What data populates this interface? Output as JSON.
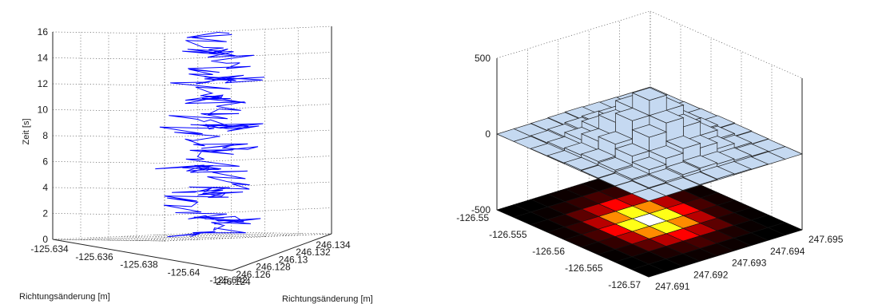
{
  "chart_data": [
    {
      "type": "line3d",
      "xlabel": "Richtungsänderung [m]",
      "ylabel": "Richtungsänderung [m]",
      "zlabel": "Zeit [s]",
      "x_ticks": [
        "-125.634",
        "-125.636",
        "-125.638",
        "-125.64",
        "-125.642"
      ],
      "y_ticks": [
        "246.124",
        "246.126",
        "246.128",
        "246.13",
        "246.132",
        "246.134"
      ],
      "z_ticks": [
        "0",
        "2",
        "4",
        "6",
        "8",
        "10",
        "12",
        "14",
        "16"
      ],
      "zlim": [
        0,
        16
      ],
      "grid": true,
      "line_color": "#0000ff",
      "path": [
        {
          "t": 0.0,
          "x": -125.6376,
          "y": 246.1286
        },
        {
          "t": 0.5,
          "x": -125.639,
          "y": 246.13
        },
        {
          "t": 1.0,
          "x": -125.6382,
          "y": 246.131
        },
        {
          "t": 1.5,
          "x": -125.6398,
          "y": 246.1296
        },
        {
          "t": 2.0,
          "x": -125.6385,
          "y": 246.1282
        },
        {
          "t": 2.5,
          "x": -125.6372,
          "y": 246.1294
        },
        {
          "t": 3.0,
          "x": -125.6388,
          "y": 246.1308
        },
        {
          "t": 3.5,
          "x": -125.638,
          "y": 246.129
        },
        {
          "t": 4.0,
          "x": -125.6395,
          "y": 246.1302
        },
        {
          "t": 4.5,
          "x": -125.6383,
          "y": 246.1312
        },
        {
          "t": 5.0,
          "x": -125.6374,
          "y": 246.1298
        },
        {
          "t": 5.5,
          "x": -125.6389,
          "y": 246.1288
        },
        {
          "t": 6.0,
          "x": -125.6378,
          "y": 246.1304
        },
        {
          "t": 6.5,
          "x": -125.6392,
          "y": 246.1314
        },
        {
          "t": 7.0,
          "x": -125.6381,
          "y": 246.1296
        },
        {
          "t": 7.5,
          "x": -125.637,
          "y": 246.1308
        },
        {
          "t": 8.0,
          "x": -125.6386,
          "y": 246.1318
        },
        {
          "t": 8.5,
          "x": -125.6396,
          "y": 246.13
        },
        {
          "t": 9.0,
          "x": -125.6379,
          "y": 246.1292
        },
        {
          "t": 9.5,
          "x": -125.639,
          "y": 246.1306
        },
        {
          "t": 10.0,
          "x": -125.6376,
          "y": 246.1316
        },
        {
          "t": 10.5,
          "x": -125.6388,
          "y": 246.1298
        },
        {
          "t": 11.0,
          "x": -125.6373,
          "y": 246.131
        },
        {
          "t": 11.5,
          "x": -125.6384,
          "y": 246.1322
        },
        {
          "t": 12.0,
          "x": -125.6394,
          "y": 246.1304
        },
        {
          "t": 12.5,
          "x": -125.638,
          "y": 246.1294
        },
        {
          "t": 13.0,
          "x": -125.6391,
          "y": 246.131
        },
        {
          "t": 13.5,
          "x": -125.6377,
          "y": 246.1318
        },
        {
          "t": 14.0,
          "x": -125.6386,
          "y": 246.13
        },
        {
          "t": 14.5,
          "x": -125.6374,
          "y": 246.1314
        },
        {
          "t": 15.0,
          "x": -125.6383,
          "y": 246.1324
        }
      ]
    },
    {
      "type": "bar3d",
      "x_ticks": [
        "-126.55",
        "-126.555",
        "-126.56",
        "-126.565",
        "-126.57"
      ],
      "y_ticks": [
        "247.691",
        "247.692",
        "247.693",
        "247.694",
        "247.695"
      ],
      "z_ticks": [
        "500",
        "0",
        "-500"
      ],
      "zlim": [
        -500,
        500
      ],
      "grid": true,
      "bar_color": "#c5d9f1",
      "heatmap_below": true,
      "grid_size": 9,
      "values": [
        [
          0,
          0,
          2,
          5,
          8,
          5,
          2,
          0,
          0
        ],
        [
          0,
          4,
          12,
          22,
          30,
          22,
          12,
          4,
          0
        ],
        [
          2,
          12,
          40,
          80,
          110,
          80,
          40,
          12,
          2
        ],
        [
          5,
          22,
          80,
          170,
          230,
          170,
          80,
          22,
          5
        ],
        [
          8,
          30,
          110,
          230,
          330,
          230,
          110,
          30,
          8
        ],
        [
          5,
          22,
          80,
          170,
          230,
          170,
          80,
          22,
          5
        ],
        [
          2,
          12,
          40,
          80,
          110,
          80,
          40,
          12,
          2
        ],
        [
          0,
          4,
          12,
          22,
          30,
          22,
          12,
          4,
          0
        ],
        [
          0,
          0,
          2,
          5,
          8,
          5,
          2,
          0,
          0
        ]
      ]
    }
  ]
}
